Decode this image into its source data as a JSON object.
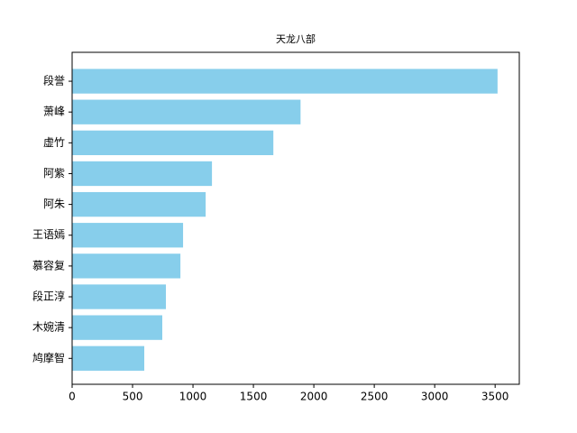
{
  "chart_data": {
    "type": "barh",
    "title": "天龙八部",
    "categories": [
      "段誉",
      "萧峰",
      "虚竹",
      "阿紫",
      "阿朱",
      "王语嫣",
      "慕容复",
      "段正淳",
      "木婉清",
      "鸠摩智"
    ],
    "values": [
      3520,
      1890,
      1665,
      1157,
      1105,
      918,
      896,
      776,
      746,
      597
    ],
    "color": "#87ceeb",
    "xlim": [
      0,
      3700
    ],
    "xticks": [
      0,
      500,
      1000,
      1500,
      2000,
      2500,
      3000,
      3500
    ]
  }
}
